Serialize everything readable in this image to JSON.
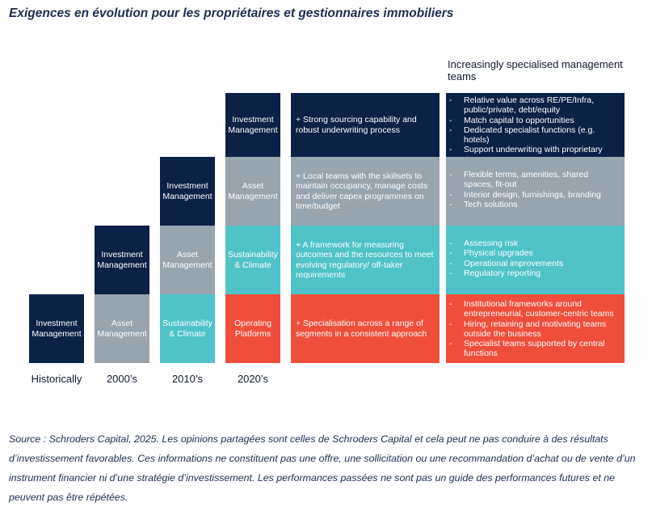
{
  "title": "Exigences en évolution pour les propriétaires et gestionnaires immobiliers",
  "columns": [
    {
      "era": "Historically",
      "blocks": [
        "Investment\nManagement"
      ]
    },
    {
      "era": "2000’s",
      "blocks": [
        "Investment\nManagement",
        "Asset\nManagement"
      ]
    },
    {
      "era": "2010’s",
      "blocks": [
        "Investment\nManagement",
        "Asset\nManagement",
        "Sustainability\n& Climate"
      ]
    },
    {
      "era": "2020’s",
      "blocks": [
        "Investment\nManagement",
        "Asset\nManagement",
        "Sustainability\n& Climate",
        "Operating\nPlatforms"
      ]
    }
  ],
  "descriptions": [
    "+ Strong sourcing capability and robust underwriting process",
    "+ Local teams with the skillsets to maintain occupancy, manage costs and deliver capex programmes on time/budget",
    "+ A framework for measuring outcomes and the resources to meet evolving regulatory/ off-taker requirements",
    "+ Specialisation across a range of segments in a consistent approach"
  ],
  "teams_heading": "Increasingly specialised management teams",
  "teams": [
    [
      "Relative value across RE/PE/Infra, public/private, debt/equity",
      "Match capital to opportunities",
      "Dedicated specialist functions (e.g. hotels)",
      "Support underwriting with proprietary data"
    ],
    [
      "Flexible terms, amenities, shared spaces, fit-out",
      "Interior design, furnishings, branding",
      "Tech solutions"
    ],
    [
      "Assessing risk",
      "Physical upgrades",
      "Operational improvements",
      "Regulatory reporting"
    ],
    [
      "Institutional frameworks around entrepreneurial, customer-centric teams",
      "Hiring, retaining and motivating teams outside the business",
      "Specialist teams supported by central functions"
    ]
  ],
  "source": "Source : Schroders Capital, 2025. Les opinions partagées sont celles de Schroders Capital et cela peut ne pas conduire à des résultats d’investissement favorables. Ces informations ne constituent pas une offre, une sollicitation ou une recommandation d’achat ou de vente d’un instrument financier ni d’une stratégie d’investissement. Les performances passées ne sont pas un guide des performances futures et ne peuvent pas être répétées.",
  "colors": {
    "navy": "#0b2145",
    "grey": "#98a4ae",
    "teal": "#4fc3c8",
    "red": "#f04e3c"
  }
}
